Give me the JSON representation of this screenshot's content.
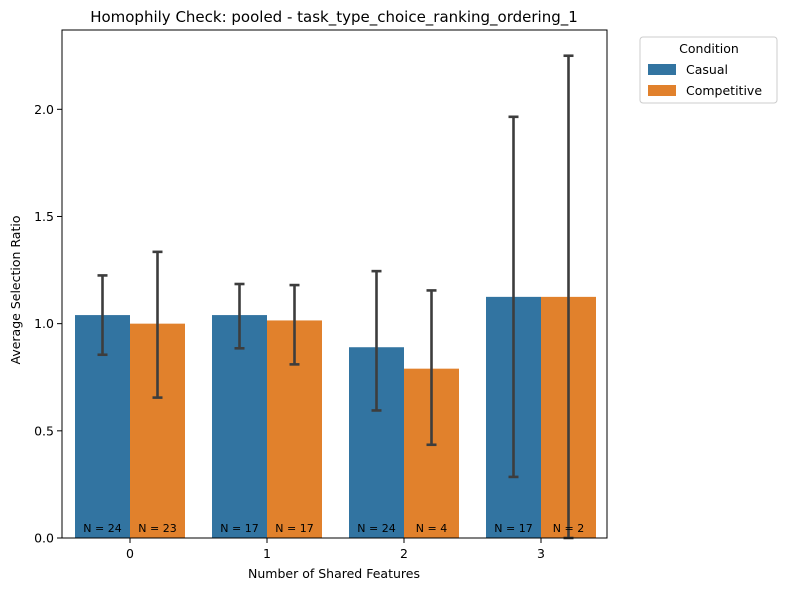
{
  "chart_data": {
    "type": "bar",
    "title": "Homophily Check: pooled - task_type_choice_ranking_ordering_1",
    "xlabel": "Number of Shared Features",
    "ylabel": "Average Selection Ratio",
    "categories": [
      "0",
      "1",
      "2",
      "3"
    ],
    "ylim": [
      0,
      2.37
    ],
    "yticks": [
      "0.0",
      "0.5",
      "1.0",
      "1.5",
      "2.0"
    ],
    "ytick_values": [
      0,
      0.5,
      1.0,
      1.5,
      2.0
    ],
    "grid": false,
    "legend": {
      "title": "Condition",
      "placement": "outside-top-right"
    },
    "series": [
      {
        "name": "Casual",
        "color": "#3274a1",
        "values": [
          1.04,
          1.04,
          0.89,
          1.125
        ],
        "err_low": [
          0.855,
          0.885,
          0.595,
          0.285
        ],
        "err_high": [
          1.225,
          1.185,
          1.245,
          1.965
        ],
        "n_labels": [
          "N = 24",
          "N = 17",
          "N = 24",
          "N = 17"
        ]
      },
      {
        "name": "Competitive",
        "color": "#e1812c",
        "values": [
          1.0,
          1.015,
          0.79,
          1.125
        ],
        "err_low": [
          0.655,
          0.81,
          0.435,
          0.0
        ],
        "err_high": [
          1.335,
          1.18,
          1.155,
          2.25
        ],
        "n_labels": [
          "N = 23",
          "N = 17",
          "N = 4",
          "N = 2"
        ]
      }
    ]
  }
}
